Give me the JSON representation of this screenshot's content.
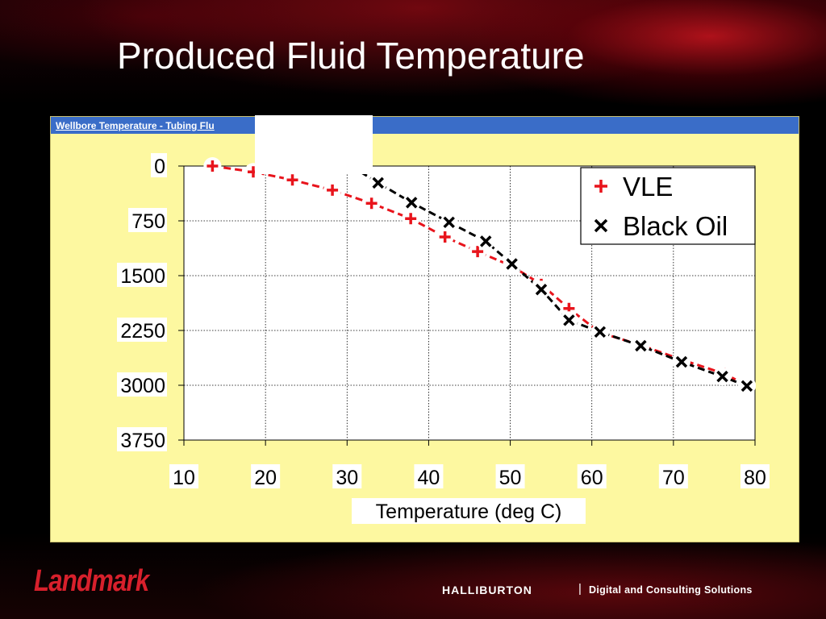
{
  "slide": {
    "title": "Produced Fluid Temperature",
    "chart_header": "Wellbore Temperature - Tubing Flu",
    "footer": {
      "left_logo": "Landmark",
      "right_logo": "HALLIBURTON",
      "separator": "|",
      "tagline": "Digital and Consulting Solutions"
    }
  },
  "chart_data": {
    "type": "line",
    "title": "Wellbore Temperature - Tubing Flu",
    "xlabel": "Temperature (deg C)",
    "ylabel": "",
    "xlim": [
      10,
      80
    ],
    "ylim": [
      0,
      3750
    ],
    "y_inverted": true,
    "x_ticks": [
      10,
      20,
      30,
      40,
      50,
      60,
      70,
      80
    ],
    "y_ticks": [
      0,
      750,
      1500,
      2250,
      3000,
      3750
    ],
    "grid": "dotted",
    "legend_position": "top-right",
    "series": [
      {
        "name": "VLE",
        "marker": "plus",
        "color": "#e8141c",
        "line_style": "dashed",
        "x": [
          13.5,
          18.5,
          23.3,
          28.2,
          33,
          37.8,
          42,
          46,
          50.2,
          53.8,
          57.2,
          61,
          66,
          71,
          76.2,
          79
        ],
        "y": [
          0,
          80,
          190,
          330,
          510,
          720,
          970,
          1170,
          1370,
          1620,
          1950,
          2280,
          2450,
          2650,
          2840,
          3000
        ]
      },
      {
        "name": "Black Oil",
        "marker": "x",
        "color": "#000000",
        "line_style": "dashed",
        "x": [
          30.5,
          33.8,
          37.9,
          42.5,
          47,
          50.2,
          53.8,
          57.2,
          61,
          66,
          71,
          76,
          79
        ],
        "y": [
          0,
          230,
          500,
          770,
          1030,
          1340,
          1690,
          2110,
          2270,
          2460,
          2680,
          2880,
          3010
        ]
      }
    ]
  }
}
